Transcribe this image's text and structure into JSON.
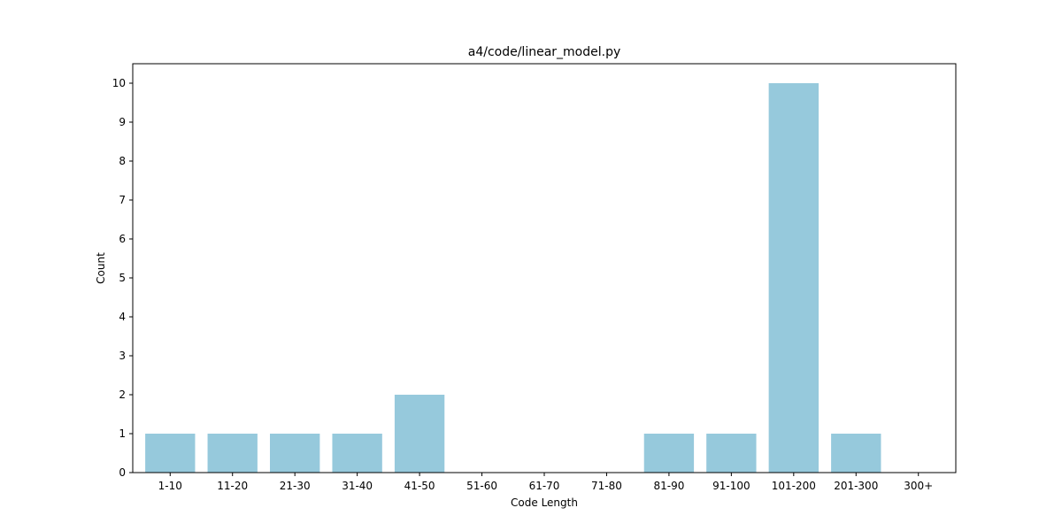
{
  "chart_data": {
    "type": "bar",
    "title": "a4/code/linear_model.py",
    "xlabel": "Code Length",
    "ylabel": "Count",
    "categories": [
      "1-10",
      "11-20",
      "21-30",
      "31-40",
      "41-50",
      "51-60",
      "61-70",
      "71-80",
      "81-90",
      "91-100",
      "101-200",
      "201-300",
      "300+"
    ],
    "values": [
      1,
      1,
      1,
      1,
      2,
      0,
      0,
      0,
      1,
      1,
      10,
      1,
      0
    ],
    "ylim": [
      0,
      10.5
    ],
    "yticks": [
      "0",
      "1",
      "2",
      "3",
      "4",
      "5",
      "6",
      "7",
      "8",
      "9",
      "10"
    ],
    "bar_color": "#96c9dc",
    "grid": false,
    "legend": "none"
  }
}
